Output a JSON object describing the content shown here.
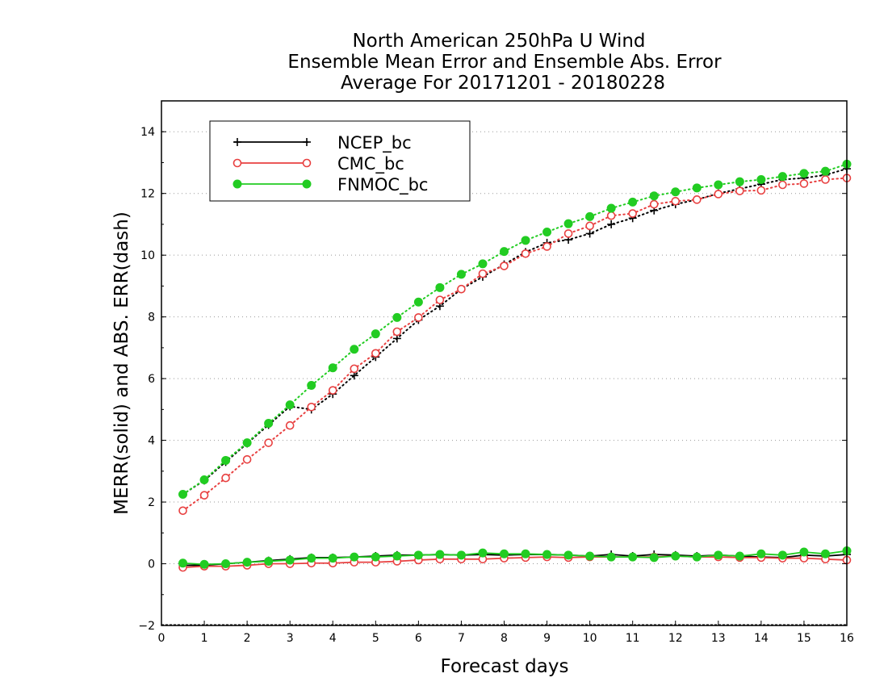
{
  "chart_data": {
    "type": "line",
    "title_lines": [
      "North American 250hPa U Wind",
      "Ensemble Mean Error and Ensemble Abs. Error",
      "Average For 20171201 - 20180228"
    ],
    "xlabel": "Forecast days",
    "ylabel": "MERR(solid) and ABS. ERR(dash)",
    "xlim": [
      0,
      16
    ],
    "ylim": [
      -2,
      15
    ],
    "x_ticks": [
      0,
      1,
      2,
      3,
      4,
      5,
      6,
      7,
      8,
      9,
      10,
      11,
      12,
      13,
      14,
      15,
      16
    ],
    "y_ticks": [
      -2,
      0,
      2,
      4,
      6,
      8,
      10,
      12,
      14
    ],
    "grid": "horizontal-dotted",
    "legend_position": "top-left",
    "x": [
      0.5,
      1,
      1.5,
      2,
      2.5,
      3,
      3.5,
      4,
      4.5,
      5,
      5.5,
      6,
      6.5,
      7,
      7.5,
      8,
      8.5,
      9,
      9.5,
      10,
      10.5,
      11,
      11.5,
      12,
      12.5,
      13,
      13.5,
      14,
      14.5,
      15,
      15.5,
      16
    ],
    "series": [
      {
        "name": "NCEP_bc",
        "color": "#000000",
        "marker": "plus",
        "merr": [
          -0.05,
          -0.05,
          0.0,
          0.05,
          0.1,
          0.15,
          0.2,
          0.2,
          0.22,
          0.25,
          0.28,
          0.28,
          0.3,
          0.28,
          0.3,
          0.28,
          0.3,
          0.3,
          0.28,
          0.25,
          0.3,
          0.25,
          0.3,
          0.28,
          0.25,
          0.28,
          0.25,
          0.22,
          0.2,
          0.28,
          0.25,
          0.3
        ],
        "abs_err": [
          2.25,
          2.7,
          3.3,
          3.9,
          4.5,
          5.1,
          5.0,
          5.5,
          6.1,
          6.7,
          7.3,
          7.9,
          8.35,
          8.9,
          9.3,
          9.7,
          10.1,
          10.4,
          10.5,
          10.7,
          11.0,
          11.2,
          11.45,
          11.65,
          11.8,
          12.0,
          12.15,
          12.3,
          12.45,
          12.5,
          12.6,
          12.8
        ]
      },
      {
        "name": "CMC_bc",
        "color": "#e84040",
        "marker": "circle-open",
        "merr": [
          -0.12,
          -0.08,
          -0.08,
          -0.05,
          0.0,
          0.0,
          0.02,
          0.02,
          0.05,
          0.05,
          0.08,
          0.12,
          0.15,
          0.15,
          0.15,
          0.18,
          0.2,
          0.22,
          0.2,
          0.22,
          0.22,
          0.22,
          0.22,
          0.25,
          0.22,
          0.22,
          0.2,
          0.2,
          0.18,
          0.18,
          0.15,
          0.12
        ],
        "abs_err": [
          1.72,
          2.22,
          2.78,
          3.38,
          3.92,
          4.48,
          5.08,
          5.62,
          6.32,
          6.82,
          7.52,
          7.98,
          8.55,
          8.9,
          9.4,
          9.65,
          10.05,
          10.28,
          10.7,
          10.95,
          11.28,
          11.35,
          11.65,
          11.75,
          11.8,
          11.98,
          12.08,
          12.1,
          12.28,
          12.32,
          12.45,
          12.5
        ]
      },
      {
        "name": "FNMOC_bc",
        "color": "#22cc22",
        "marker": "circle-filled",
        "merr": [
          0.02,
          -0.02,
          0.0,
          0.05,
          0.08,
          0.12,
          0.18,
          0.18,
          0.22,
          0.22,
          0.25,
          0.28,
          0.3,
          0.28,
          0.35,
          0.32,
          0.32,
          0.3,
          0.28,
          0.25,
          0.22,
          0.22,
          0.2,
          0.25,
          0.22,
          0.28,
          0.25,
          0.32,
          0.28,
          0.38,
          0.32,
          0.42
        ],
        "abs_err": [
          2.25,
          2.72,
          3.35,
          3.92,
          4.55,
          5.15,
          5.78,
          6.35,
          6.95,
          7.45,
          7.98,
          8.48,
          8.95,
          9.38,
          9.72,
          10.12,
          10.48,
          10.75,
          11.02,
          11.25,
          11.52,
          11.72,
          11.92,
          12.05,
          12.18,
          12.28,
          12.38,
          12.45,
          12.55,
          12.65,
          12.72,
          12.95
        ]
      }
    ]
  }
}
